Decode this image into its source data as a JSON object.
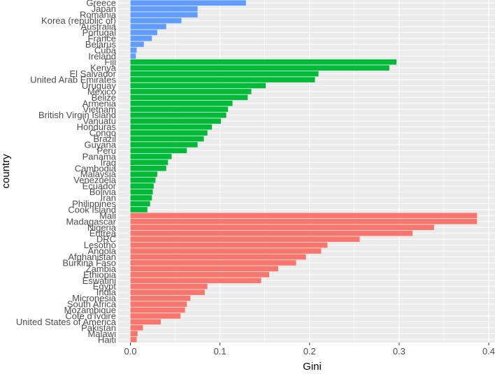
{
  "chart_data": {
    "type": "bar",
    "orientation": "horizontal",
    "title": "",
    "xlabel": "Gini",
    "ylabel": "country",
    "xlim": [
      0,
      0.4
    ],
    "x_ticks": [
      "0.0",
      "0.1",
      "0.2",
      "0.3",
      "0.4"
    ],
    "grid": true,
    "legend": "none",
    "colors": {
      "blue": "#619CFF",
      "green": "#00BA38",
      "red": "#F8766D",
      "panel": "#EBEBEB",
      "grid": "#FFFFFF"
    },
    "bars": [
      {
        "country": "Greece",
        "value": 0.129,
        "group": "blue"
      },
      {
        "country": "Japan",
        "value": 0.075,
        "group": "blue"
      },
      {
        "country": "Romania",
        "value": 0.075,
        "group": "blue"
      },
      {
        "country": "Korea (republic of)",
        "value": 0.057,
        "group": "blue"
      },
      {
        "country": "Australia",
        "value": 0.04,
        "group": "blue"
      },
      {
        "country": "Portugal",
        "value": 0.03,
        "group": "blue"
      },
      {
        "country": "France",
        "value": 0.024,
        "group": "blue"
      },
      {
        "country": "Belarus",
        "value": 0.015,
        "group": "blue"
      },
      {
        "country": "Cuba",
        "value": 0.007,
        "group": "blue"
      },
      {
        "country": "Ireland",
        "value": 0.006,
        "group": "blue"
      },
      {
        "country": "Fiji",
        "value": 0.297,
        "group": "green"
      },
      {
        "country": "Kenya",
        "value": 0.289,
        "group": "green"
      },
      {
        "country": "El Salvador",
        "value": 0.21,
        "group": "green"
      },
      {
        "country": "United Arab Emirates",
        "value": 0.206,
        "group": "green"
      },
      {
        "country": "Uruguay",
        "value": 0.151,
        "group": "green"
      },
      {
        "country": "Mexico",
        "value": 0.135,
        "group": "green"
      },
      {
        "country": "Belize",
        "value": 0.131,
        "group": "green"
      },
      {
        "country": "Armenia",
        "value": 0.114,
        "group": "green"
      },
      {
        "country": "Vietnam",
        "value": 0.109,
        "group": "green"
      },
      {
        "country": "British Virgin Island",
        "value": 0.107,
        "group": "green"
      },
      {
        "country": "Vanuatu",
        "value": 0.101,
        "group": "green"
      },
      {
        "country": "Honduras",
        "value": 0.091,
        "group": "green"
      },
      {
        "country": "Congo",
        "value": 0.086,
        "group": "green"
      },
      {
        "country": "Brazil",
        "value": 0.082,
        "group": "green"
      },
      {
        "country": "Guyana",
        "value": 0.075,
        "group": "green"
      },
      {
        "country": "Peru",
        "value": 0.063,
        "group": "green"
      },
      {
        "country": "Panama",
        "value": 0.046,
        "group": "green"
      },
      {
        "country": "Iraq",
        "value": 0.042,
        "group": "green"
      },
      {
        "country": "Cambodia",
        "value": 0.04,
        "group": "green"
      },
      {
        "country": "Malaysia",
        "value": 0.03,
        "group": "green"
      },
      {
        "country": "Venezuela",
        "value": 0.028,
        "group": "green"
      },
      {
        "country": "Ecuador",
        "value": 0.026,
        "group": "green"
      },
      {
        "country": "Bolivia",
        "value": 0.025,
        "group": "green"
      },
      {
        "country": "Iran",
        "value": 0.024,
        "group": "green"
      },
      {
        "country": "Philippines",
        "value": 0.022,
        "group": "green"
      },
      {
        "country": "Cook Island",
        "value": 0.019,
        "group": "green"
      },
      {
        "country": "Mali",
        "value": 0.387,
        "group": "red"
      },
      {
        "country": "Madagascar",
        "value": 0.387,
        "group": "red"
      },
      {
        "country": "Nigeria",
        "value": 0.339,
        "group": "red"
      },
      {
        "country": "Eritrea",
        "value": 0.315,
        "group": "red"
      },
      {
        "country": "DRC",
        "value": 0.256,
        "group": "red"
      },
      {
        "country": "Lesotho",
        "value": 0.22,
        "group": "red"
      },
      {
        "country": "Angola",
        "value": 0.213,
        "group": "red"
      },
      {
        "country": "Afghanistan",
        "value": 0.196,
        "group": "red"
      },
      {
        "country": "Burkina Faso",
        "value": 0.185,
        "group": "red"
      },
      {
        "country": "Zambia",
        "value": 0.165,
        "group": "red"
      },
      {
        "country": "Ethiopia",
        "value": 0.155,
        "group": "red"
      },
      {
        "country": "Eswatini",
        "value": 0.146,
        "group": "red"
      },
      {
        "country": "Egypt",
        "value": 0.086,
        "group": "red"
      },
      {
        "country": "India",
        "value": 0.083,
        "group": "red"
      },
      {
        "country": "Micronesia",
        "value": 0.067,
        "group": "red"
      },
      {
        "country": "South Africa",
        "value": 0.063,
        "group": "red"
      },
      {
        "country": "Mozambique",
        "value": 0.061,
        "group": "red"
      },
      {
        "country": "Cote d'Ivoire",
        "value": 0.056,
        "group": "red"
      },
      {
        "country": "United States of America",
        "value": 0.034,
        "group": "red"
      },
      {
        "country": "Pakistan",
        "value": 0.014,
        "group": "red"
      },
      {
        "country": "Malawi",
        "value": 0.008,
        "group": "red"
      },
      {
        "country": "Haiti",
        "value": 0.007,
        "group": "red"
      }
    ]
  }
}
